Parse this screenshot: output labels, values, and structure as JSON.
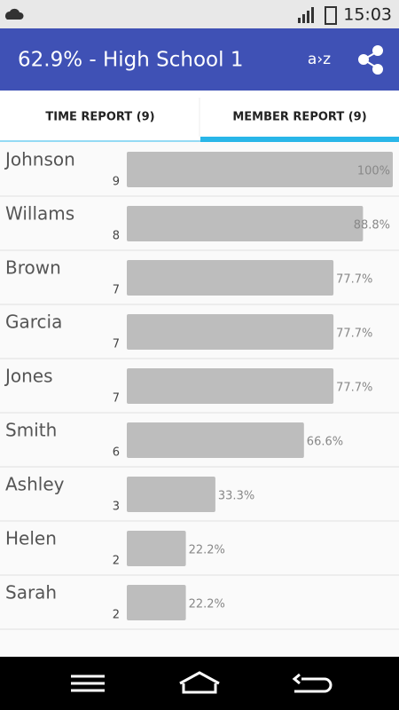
{
  "status_bar": {
    "time": "15:03"
  },
  "app_bar": {
    "title": "62.9% - High School 1",
    "sort_label": "a›z"
  },
  "tabs": [
    {
      "label": "TIME REPORT (9)",
      "active": false
    },
    {
      "label": "MEMBER REPORT (9)",
      "active": true
    }
  ],
  "rows": [
    {
      "name": "Johnson",
      "count": 9,
      "value": 100,
      "value_label": "100%"
    },
    {
      "name": "Willams",
      "count": 8,
      "value": 88.8,
      "value_label": "88.8%"
    },
    {
      "name": "Brown",
      "count": 7,
      "value": 77.7,
      "value_label": "77.7%"
    },
    {
      "name": "Garcia",
      "count": 7,
      "value": 77.7,
      "value_label": "77.7%"
    },
    {
      "name": "Jones",
      "count": 7,
      "value": 77.7,
      "value_label": "77.7%"
    },
    {
      "name": "Smith",
      "count": 6,
      "value": 66.6,
      "value_label": "66.6%"
    },
    {
      "name": "Ashley",
      "count": 3,
      "value": 33.3,
      "value_label": "33.3%"
    },
    {
      "name": "Helen",
      "count": 2,
      "value": 22.2,
      "value_label": "22.2%"
    },
    {
      "name": "Sarah",
      "count": 2,
      "value": 22.2,
      "value_label": "22.2%"
    }
  ]
}
